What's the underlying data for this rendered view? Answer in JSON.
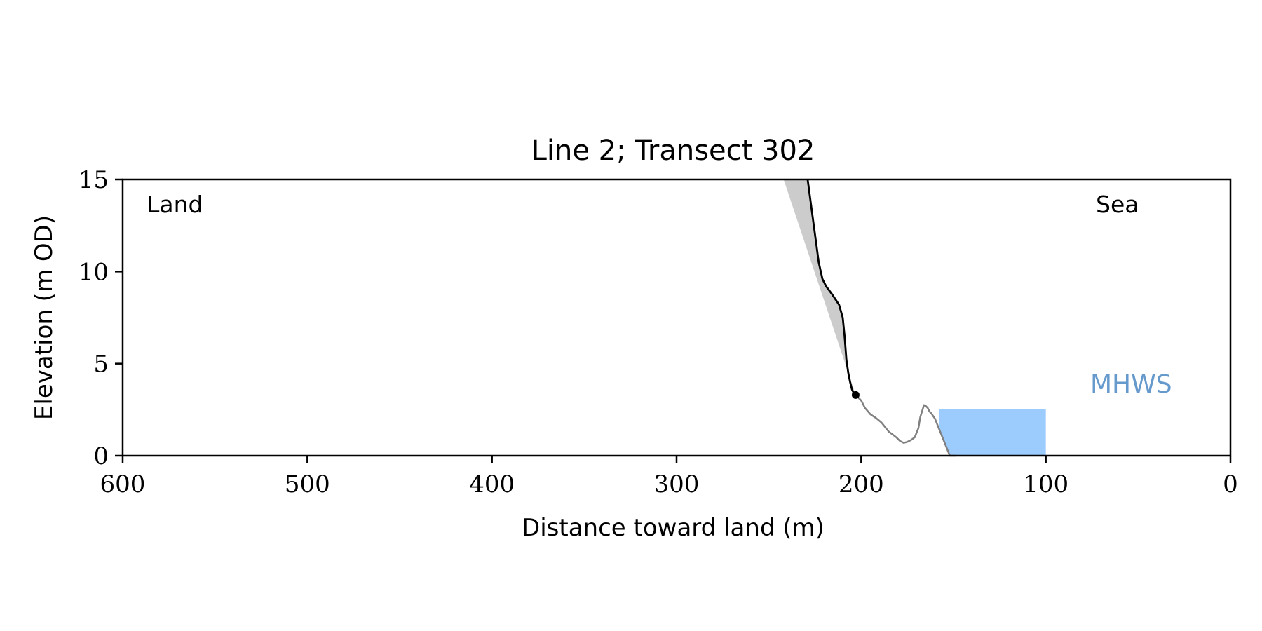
{
  "chart_data": {
    "type": "line",
    "title": "Line 2; Transect 302",
    "xlabel": "Distance toward land (m)",
    "ylabel": "Elevation (m OD)",
    "xlim": [
      600,
      0
    ],
    "ylim": [
      0,
      15
    ],
    "x_axis_inverted": true,
    "xticks": [
      600,
      500,
      400,
      300,
      200,
      100,
      0
    ],
    "yticks": [
      0,
      5,
      10,
      15
    ],
    "grid": false,
    "annotations": {
      "land": "Land",
      "sea": "Sea",
      "mhws": "MHWS"
    },
    "colors": {
      "cliff_line": "#000000",
      "beach_line": "#808080",
      "cliff_fill": "#cccccc",
      "water_fill": "#9ccbfd",
      "mhws_label": "#6699cc"
    },
    "mhws_elevation": 2.55,
    "water_extent_x": [
      158,
      100
    ],
    "cliff_toe": {
      "x": 203,
      "y": 3.3
    },
    "series": [
      {
        "role": "cliff",
        "x": [
          229,
          227,
          225,
          223,
          221,
          219,
          216,
          212,
          210,
          209,
          208,
          207,
          206,
          205,
          204,
          203
        ],
        "y": [
          15,
          13.5,
          12,
          10.5,
          9.6,
          9.2,
          8.8,
          8.2,
          7.5,
          6.5,
          5.2,
          4.5,
          4.0,
          3.6,
          3.4,
          3.3
        ]
      },
      {
        "role": "beach",
        "x": [
          203,
          200,
          198,
          195,
          192,
          189,
          187,
          185,
          183,
          181,
          179,
          177,
          175,
          173,
          171,
          169,
          168,
          166,
          165,
          164,
          163,
          162,
          160,
          158,
          156,
          154,
          152,
          150,
          148.5
        ],
        "y": [
          3.3,
          3.0,
          2.6,
          2.25,
          2.05,
          1.8,
          1.55,
          1.3,
          1.15,
          1.0,
          0.8,
          0.7,
          0.75,
          0.85,
          1.0,
          1.5,
          2.1,
          2.75,
          2.7,
          2.6,
          2.4,
          2.3,
          2.0,
          1.5,
          1.0,
          0.5,
          0.0,
          0.0,
          0.0
        ]
      },
      {
        "role": "cliff_envelope",
        "x": [
          242,
          229,
          229,
          227,
          225,
          223,
          221,
          219,
          216,
          212,
          210,
          209,
          208,
          207,
          206,
          205,
          204,
          203
        ],
        "y": [
          15,
          15,
          15,
          13.5,
          12,
          10.5,
          9.6,
          9.2,
          8.8,
          8.2,
          7.5,
          6.5,
          5.2,
          4.5,
          4.0,
          3.6,
          3.4,
          3.3
        ]
      }
    ]
  }
}
